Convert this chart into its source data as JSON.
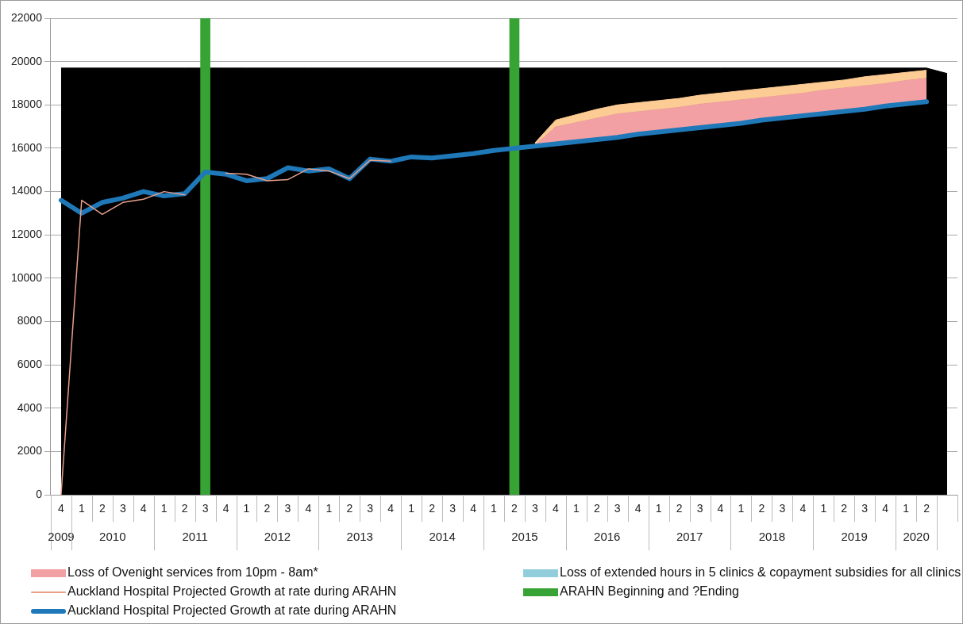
{
  "chart_data": {
    "type": "line",
    "categories": [
      "4",
      "1",
      "2",
      "3",
      "4",
      "1",
      "2",
      "3",
      "4",
      "1",
      "2",
      "3",
      "4",
      "1",
      "2",
      "3",
      "4",
      "1",
      "2",
      "3",
      "4",
      "1",
      "2",
      "3",
      "4",
      "1",
      "2",
      "3",
      "4",
      "1",
      "2",
      "3",
      "4",
      "1",
      "2",
      "3",
      "4",
      "1",
      "2",
      "3",
      "4",
      "1",
      "2",
      null
    ],
    "ylim": [
      0,
      22000
    ],
    "yticks": [
      0,
      2000,
      4000,
      6000,
      8000,
      10000,
      12000,
      14000,
      16000,
      18000,
      20000,
      22000
    ],
    "grid": "y",
    "legend": "bottom",
    "annotations": [
      "2009",
      "2010",
      "2011",
      "2012",
      "2013",
      "2014",
      "2015",
      "2016",
      "2017",
      "2018",
      "2019",
      "2020"
    ],
    "series": [
      {
        "type": "area",
        "color": "#fdcb94",
        "values": [
          null,
          null,
          null,
          null,
          null,
          null,
          null,
          null,
          null,
          null,
          null,
          null,
          null,
          null,
          null,
          null,
          null,
          null,
          null,
          null,
          null,
          null,
          null,
          16250,
          17300,
          17550,
          17800,
          18000,
          18100,
          18200,
          18300,
          18450,
          18550,
          18650,
          18750,
          18850,
          18950,
          19050,
          19150,
          19300,
          19400,
          19500,
          19600,
          null
        ]
      },
      {
        "type": "area",
        "name": "Loss of Ovenight services from 10pm - 8am*",
        "color": "#f2a0a3",
        "values": [
          null,
          null,
          null,
          null,
          null,
          null,
          null,
          null,
          null,
          null,
          null,
          null,
          null,
          null,
          null,
          null,
          null,
          null,
          null,
          null,
          null,
          null,
          null,
          16150,
          17000,
          17200,
          17400,
          17600,
          17700,
          17800,
          17900,
          18050,
          18150,
          18250,
          18350,
          18450,
          18550,
          18700,
          18800,
          18900,
          19000,
          19150,
          19250,
          null
        ]
      },
      {
        "type": "area",
        "name": "Loss of extended hours in 5 clinics & copayment subsidies for all clinics",
        "color": "#92cddc",
        "values": [
          null,
          null,
          null,
          null,
          null,
          null,
          null,
          null,
          null,
          null,
          null,
          null,
          null,
          null,
          null,
          null,
          null,
          null,
          null,
          null,
          null,
          null,
          null,
          null,
          null,
          null,
          null,
          null,
          null,
          null,
          null,
          null,
          null,
          null,
          null,
          null,
          null,
          null,
          null,
          null,
          null,
          null,
          null,
          null
        ]
      },
      {
        "name": "Auckland Hospital Projected Growth at rate during ARAHN",
        "color": "#e8a08a",
        "values": [
          0,
          13600,
          12950,
          13500,
          13650,
          14000,
          13850,
          null,
          14850,
          14800,
          14500,
          14550,
          15050,
          14950,
          14600,
          15450,
          15400,
          null,
          null,
          null,
          null,
          null,
          null,
          null,
          null,
          null,
          null,
          null,
          null,
          null,
          null,
          null,
          null,
          null,
          null,
          null,
          null,
          null,
          null,
          null,
          null,
          null,
          null,
          null
        ]
      },
      {
        "type": "bar",
        "name": "ARAHN Beginning and ?Ending",
        "color": "#37a335",
        "values": [
          null,
          null,
          null,
          null,
          null,
          null,
          null,
          22000,
          null,
          null,
          null,
          null,
          null,
          null,
          null,
          null,
          null,
          null,
          null,
          null,
          null,
          null,
          22000,
          null,
          null,
          null,
          null,
          null,
          null,
          null,
          null,
          null,
          null,
          null,
          null,
          null,
          null,
          null,
          null,
          null,
          null,
          null,
          null,
          null
        ]
      },
      {
        "name": "Auckland Hospital Projected Growth at rate during ARAHN",
        "color": "#1f78b8",
        "values": [
          13600,
          13000,
          13500,
          13700,
          14000,
          13800,
          13900,
          14900,
          14800,
          14500,
          14600,
          15100,
          14950,
          15050,
          14600,
          15500,
          15400,
          15600,
          15550,
          15650,
          15750,
          15900,
          16000,
          16100,
          16200,
          16300,
          16400,
          16500,
          16650,
          16750,
          16850,
          16950,
          17050,
          17150,
          17300,
          17400,
          17500,
          17600,
          17700,
          17800,
          17950,
          18050,
          18150,
          null
        ]
      },
      {
        "type": "area",
        "color": "#000000",
        "values": [
          19700,
          19700,
          19700,
          19700,
          19700,
          19700,
          19700,
          null,
          19700,
          19700,
          19700,
          19700,
          19700,
          19700,
          19700,
          19700,
          19700,
          19700,
          19700,
          19700,
          19700,
          19700,
          null,
          19700,
          19700,
          19700,
          19700,
          19700,
          19700,
          19700,
          19700,
          19700,
          19700,
          19700,
          19700,
          19700,
          19700,
          19700,
          19700,
          19700,
          19700,
          19700,
          19700,
          19450
        ]
      }
    ]
  }
}
